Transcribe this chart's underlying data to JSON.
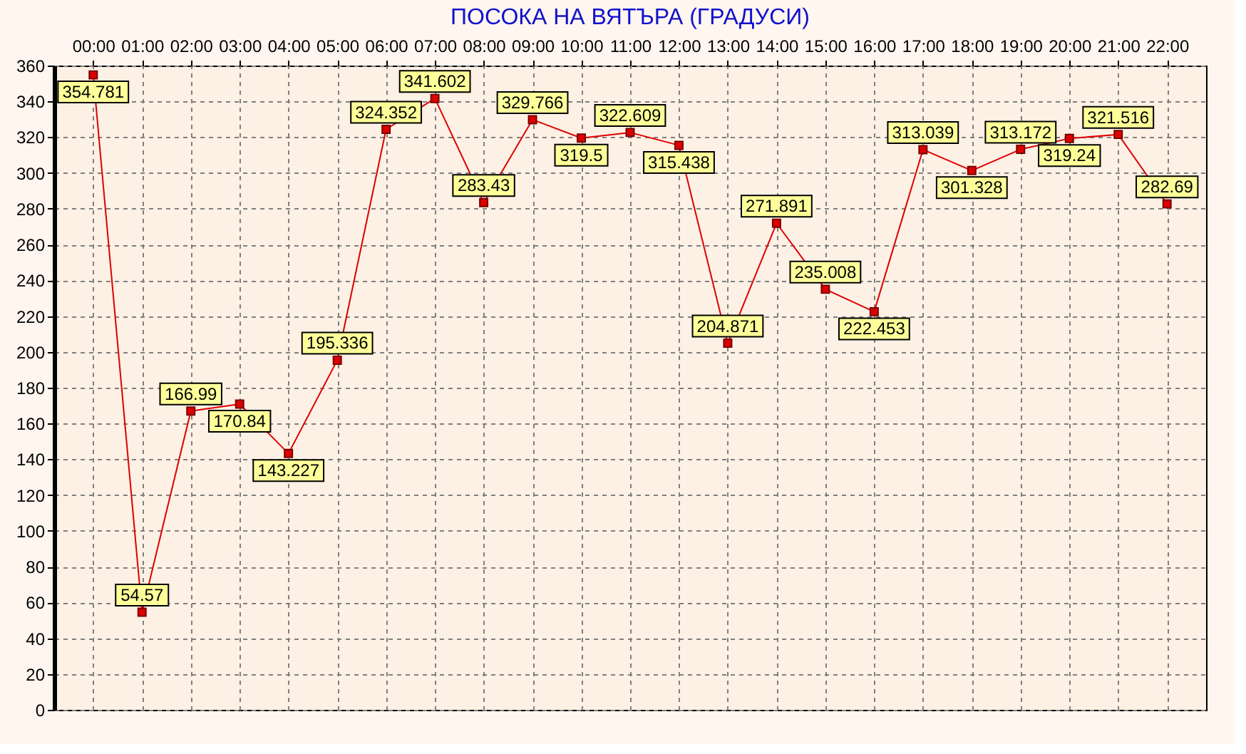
{
  "chart_data": {
    "type": "line",
    "title": "ПОСОКА НА ВЯТЪРА (ГРАДУСИ)",
    "categories": [
      "00:00",
      "01:00",
      "02:00",
      "03:00",
      "04:00",
      "05:00",
      "06:00",
      "07:00",
      "08:00",
      "09:00",
      "10:00",
      "11:00",
      "12:00",
      "13:00",
      "14:00",
      "15:00",
      "16:00",
      "17:00",
      "18:00",
      "19:00",
      "20:00",
      "21:00",
      "22:00"
    ],
    "series": [
      {
        "color": "#dd0000",
        "values": [
          354.781,
          54.57,
          166.99,
          170.84,
          143.227,
          195.336,
          324.352,
          341.602,
          283.43,
          329.766,
          319.5,
          322.609,
          315.438,
          204.871,
          271.891,
          235.008,
          222.453,
          313.039,
          301.328,
          313.172,
          319.24,
          321.516,
          282.69
        ]
      }
    ],
    "ylim": [
      0,
      360
    ],
    "yticks": [
      0,
      20,
      40,
      60,
      80,
      100,
      120,
      140,
      160,
      180,
      200,
      220,
      240,
      260,
      280,
      300,
      320,
      340,
      360
    ],
    "grid": true,
    "marker": "square",
    "line_style": "solid",
    "data_labels": true
  }
}
